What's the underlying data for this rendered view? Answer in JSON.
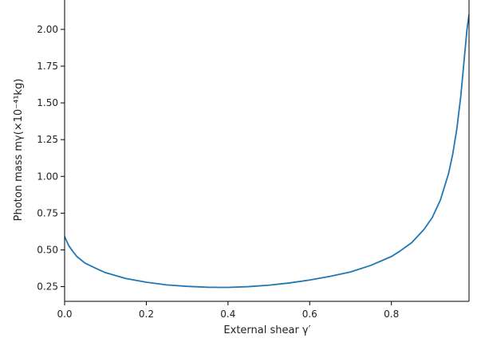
{
  "chart_data": {
    "type": "line",
    "title": "",
    "xlabel": "External shear γ′",
    "ylabel": "Photon mass mγ(×10⁻⁴¹kg)",
    "xlim": [
      0.0,
      0.99
    ],
    "ylim": [
      0.15,
      2.2
    ],
    "xticks": [
      0.0,
      0.2,
      0.4,
      0.6,
      0.8
    ],
    "xtick_labels": [
      "0.0",
      "0.2",
      "0.4",
      "0.6",
      "0.8"
    ],
    "yticks": [
      0.25,
      0.5,
      0.75,
      1.0,
      1.25,
      1.5,
      1.75,
      2.0
    ],
    "ytick_labels": [
      "0.25",
      "0.50",
      "0.75",
      "1.00",
      "1.25",
      "1.50",
      "1.75",
      "2.00"
    ],
    "grid": false,
    "series": [
      {
        "color": "#1f77b4",
        "x": [
          0.0,
          0.005,
          0.01,
          0.02,
          0.03,
          0.05,
          0.08,
          0.1,
          0.15,
          0.2,
          0.25,
          0.3,
          0.35,
          0.38,
          0.4,
          0.45,
          0.5,
          0.55,
          0.6,
          0.65,
          0.7,
          0.75,
          0.8,
          0.82,
          0.85,
          0.88,
          0.9,
          0.92,
          0.94,
          0.95,
          0.96,
          0.97,
          0.975,
          0.98,
          0.985,
          0.99
        ],
        "y": [
          0.59,
          0.56,
          0.53,
          0.49,
          0.455,
          0.41,
          0.37,
          0.345,
          0.305,
          0.28,
          0.262,
          0.252,
          0.246,
          0.245,
          0.245,
          0.25,
          0.26,
          0.275,
          0.295,
          0.32,
          0.35,
          0.395,
          0.455,
          0.49,
          0.55,
          0.64,
          0.72,
          0.84,
          1.02,
          1.15,
          1.32,
          1.55,
          1.7,
          1.85,
          2.0,
          2.1
        ]
      }
    ]
  }
}
